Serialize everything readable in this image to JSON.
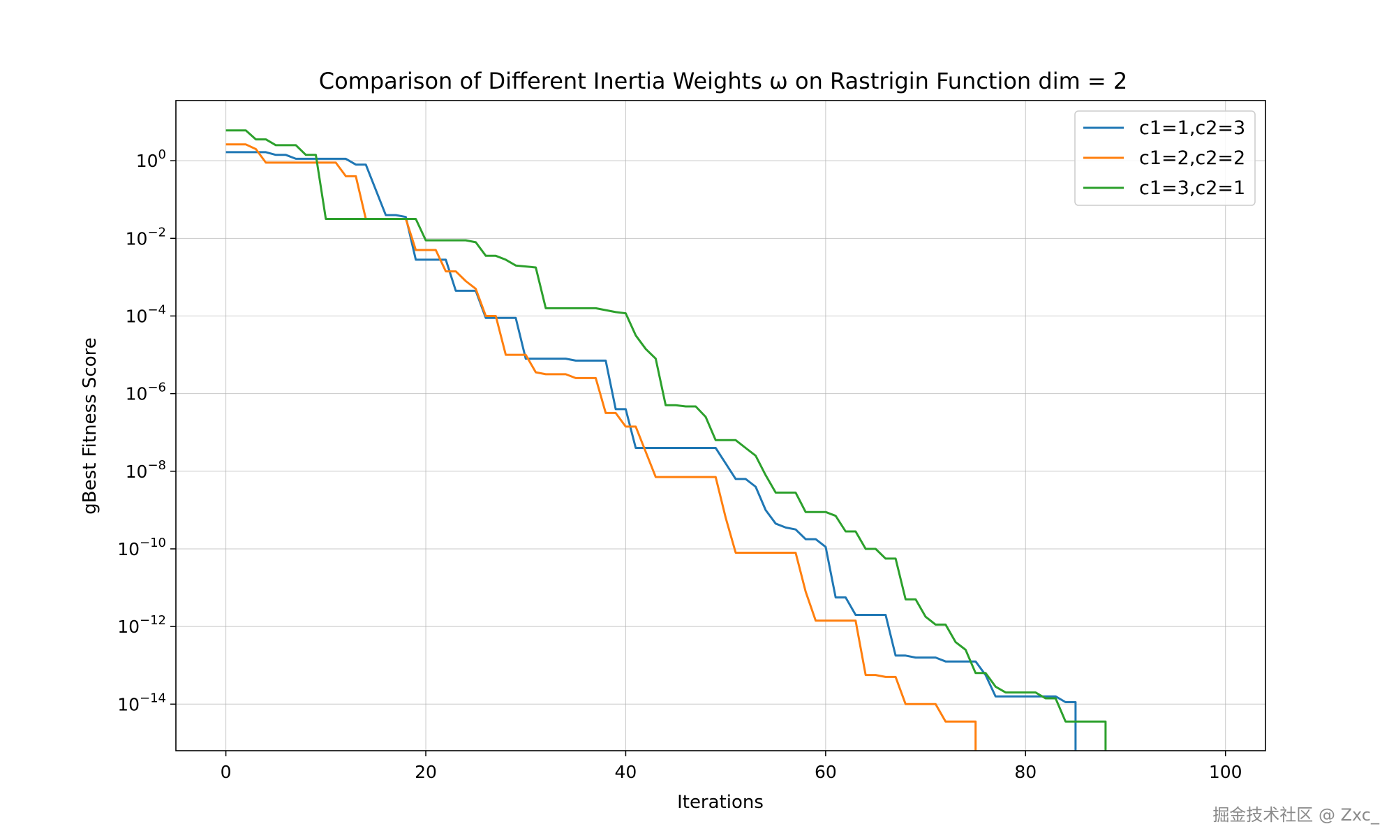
{
  "chart_data": {
    "type": "line",
    "title": "Comparison of Different Inertia Weights ω on Rastrigin Function dim = 2",
    "xlabel": "Iterations",
    "ylabel": "gBest Fitness Score",
    "xlim": [
      -5,
      104
    ],
    "ylim_log10": [
      -15.2,
      1.55
    ],
    "yscale": "log",
    "grid": true,
    "legend_position": "top-right",
    "xticks": [
      0,
      20,
      40,
      60,
      80,
      100
    ],
    "yticks": [
      {
        "base": "10",
        "exp": "0",
        "log": 0
      },
      {
        "base": "10",
        "exp": "−2",
        "log": -2
      },
      {
        "base": "10",
        "exp": "−4",
        "log": -4
      },
      {
        "base": "10",
        "exp": "−6",
        "log": -6
      },
      {
        "base": "10",
        "exp": "−8",
        "log": -8
      },
      {
        "base": "10",
        "exp": "−10",
        "log": -10
      },
      {
        "base": "10",
        "exp": "−12",
        "log": -12
      },
      {
        "base": "10",
        "exp": "−14",
        "log": -14
      }
    ],
    "series": [
      {
        "name": "c1=1,c2=3",
        "color": "#1f77b4",
        "log10_values": [
          [
            0,
            0.22
          ],
          [
            4,
            0.22
          ],
          [
            5,
            0.15
          ],
          [
            6,
            0.15
          ],
          [
            7,
            0.05
          ],
          [
            12,
            0.05
          ],
          [
            13,
            -0.1
          ],
          [
            14,
            -0.1
          ],
          [
            16,
            -1.4
          ],
          [
            17,
            -1.4
          ],
          [
            18,
            -1.45
          ],
          [
            19,
            -2.55
          ],
          [
            22,
            -2.55
          ],
          [
            23,
            -3.35
          ],
          [
            25,
            -3.35
          ],
          [
            26,
            -4.05
          ],
          [
            29,
            -4.05
          ],
          [
            30,
            -5.1
          ],
          [
            34,
            -5.1
          ],
          [
            35,
            -5.15
          ],
          [
            38,
            -5.15
          ],
          [
            39,
            -6.4
          ],
          [
            40,
            -6.4
          ],
          [
            41,
            -7.4
          ],
          [
            49,
            -7.4
          ],
          [
            50,
            -7.8
          ],
          [
            51,
            -8.2
          ],
          [
            52,
            -8.2
          ],
          [
            53,
            -8.4
          ],
          [
            54,
            -9.0
          ],
          [
            55,
            -9.35
          ],
          [
            56,
            -9.45
          ],
          [
            57,
            -9.5
          ],
          [
            58,
            -9.75
          ],
          [
            59,
            -9.75
          ],
          [
            60,
            -9.95
          ],
          [
            61,
            -11.25
          ],
          [
            62,
            -11.25
          ],
          [
            63,
            -11.7
          ],
          [
            66,
            -11.7
          ],
          [
            67,
            -12.75
          ],
          [
            68,
            -12.75
          ],
          [
            69,
            -12.8
          ],
          [
            71,
            -12.8
          ],
          [
            72,
            -12.9
          ],
          [
            75,
            -12.9
          ],
          [
            76,
            -13.25
          ],
          [
            77,
            -13.8
          ],
          [
            83,
            -13.8
          ],
          [
            84,
            -13.95
          ],
          [
            85,
            -13.95
          ],
          [
            85,
            -15.2
          ]
        ]
      },
      {
        "name": "c1=2,c2=2",
        "color": "#ff7f0e",
        "log10_values": [
          [
            0,
            0.42
          ],
          [
            2,
            0.42
          ],
          [
            3,
            0.3
          ],
          [
            4,
            -0.05
          ],
          [
            11,
            -0.05
          ],
          [
            12,
            -0.4
          ],
          [
            13,
            -0.4
          ],
          [
            14,
            -1.5
          ],
          [
            18,
            -1.5
          ],
          [
            19,
            -2.3
          ],
          [
            21,
            -2.3
          ],
          [
            22,
            -2.85
          ],
          [
            23,
            -2.85
          ],
          [
            24,
            -3.1
          ],
          [
            25,
            -3.3
          ],
          [
            26,
            -4.0
          ],
          [
            27,
            -4.0
          ],
          [
            28,
            -5.0
          ],
          [
            30,
            -5.0
          ],
          [
            31,
            -5.45
          ],
          [
            32,
            -5.5
          ],
          [
            34,
            -5.5
          ],
          [
            35,
            -5.6
          ],
          [
            37,
            -5.6
          ],
          [
            38,
            -6.5
          ],
          [
            39,
            -6.5
          ],
          [
            40,
            -6.85
          ],
          [
            41,
            -6.85
          ],
          [
            42,
            -7.5
          ],
          [
            43,
            -8.15
          ],
          [
            49,
            -8.15
          ],
          [
            50,
            -9.2
          ],
          [
            51,
            -10.1
          ],
          [
            57,
            -10.1
          ],
          [
            58,
            -11.1
          ],
          [
            59,
            -11.85
          ],
          [
            63,
            -11.85
          ],
          [
            64,
            -13.25
          ],
          [
            65,
            -13.25
          ],
          [
            66,
            -13.3
          ],
          [
            67,
            -13.3
          ],
          [
            68,
            -14.0
          ],
          [
            71,
            -14.0
          ],
          [
            72,
            -14.45
          ],
          [
            75,
            -14.45
          ],
          [
            75,
            -15.2
          ]
        ]
      },
      {
        "name": "c1=3,c2=1",
        "color": "#2ca02c",
        "log10_values": [
          [
            0,
            0.78
          ],
          [
            2,
            0.78
          ],
          [
            3,
            0.55
          ],
          [
            4,
            0.55
          ],
          [
            5,
            0.4
          ],
          [
            7,
            0.4
          ],
          [
            8,
            0.15
          ],
          [
            9,
            0.15
          ],
          [
            10,
            -1.5
          ],
          [
            19,
            -1.5
          ],
          [
            20,
            -2.05
          ],
          [
            24,
            -2.05
          ],
          [
            25,
            -2.1
          ],
          [
            26,
            -2.45
          ],
          [
            27,
            -2.45
          ],
          [
            28,
            -2.55
          ],
          [
            29,
            -2.7
          ],
          [
            31,
            -2.75
          ],
          [
            32,
            -3.8
          ],
          [
            37,
            -3.8
          ],
          [
            38,
            -3.85
          ],
          [
            39,
            -3.9
          ],
          [
            40,
            -3.93
          ],
          [
            41,
            -4.5
          ],
          [
            42,
            -4.85
          ],
          [
            43,
            -5.1
          ],
          [
            44,
            -6.3
          ],
          [
            45,
            -6.3
          ],
          [
            46,
            -6.33
          ],
          [
            47,
            -6.33
          ],
          [
            48,
            -6.6
          ],
          [
            49,
            -7.2
          ],
          [
            51,
            -7.2
          ],
          [
            52,
            -7.4
          ],
          [
            53,
            -7.6
          ],
          [
            54,
            -8.1
          ],
          [
            55,
            -8.55
          ],
          [
            57,
            -8.55
          ],
          [
            58,
            -9.05
          ],
          [
            60,
            -9.05
          ],
          [
            61,
            -9.15
          ],
          [
            62,
            -9.55
          ],
          [
            63,
            -9.55
          ],
          [
            64,
            -10.0
          ],
          [
            65,
            -10.0
          ],
          [
            66,
            -10.25
          ],
          [
            67,
            -10.25
          ],
          [
            68,
            -11.3
          ],
          [
            69,
            -11.3
          ],
          [
            70,
            -11.75
          ],
          [
            71,
            -11.95
          ],
          [
            72,
            -11.95
          ],
          [
            73,
            -12.4
          ],
          [
            74,
            -12.6
          ],
          [
            75,
            -13.2
          ],
          [
            76,
            -13.2
          ],
          [
            77,
            -13.55
          ],
          [
            78,
            -13.7
          ],
          [
            81,
            -13.7
          ],
          [
            82,
            -13.85
          ],
          [
            83,
            -13.85
          ],
          [
            84,
            -14.45
          ],
          [
            88,
            -14.45
          ],
          [
            88,
            -15.2
          ]
        ]
      }
    ]
  },
  "footer": {
    "watermark": "掘金技术社区 @ Zxc_"
  }
}
